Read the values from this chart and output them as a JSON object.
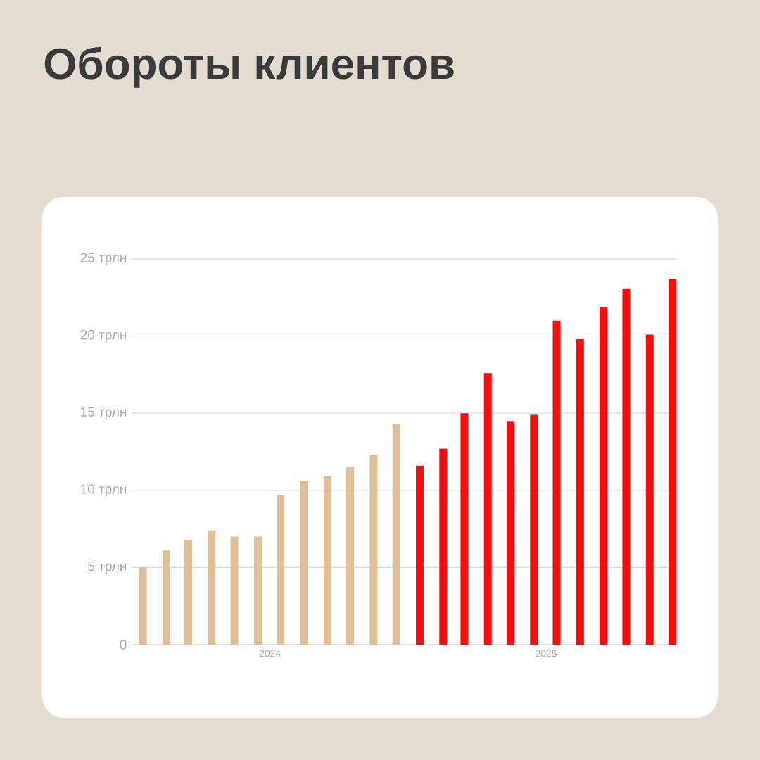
{
  "chart_data": {
    "type": "bar",
    "title": "Обороты клиентов",
    "x": [
      "2024-01-15",
      "2024-02-15",
      "2024-03-15",
      "2024-04-15",
      "2024-05-15",
      "2024-06-15",
      "2024-07-15",
      "2024-08-15",
      "2024-09-15",
      "2024-10-15",
      "2024-11-15",
      "2024-12-15",
      "2025-01-15",
      "2025-02-15",
      "2025-03-15",
      "2025-04-15",
      "2025-05-15",
      "2025-06-15",
      "2025-07-15",
      "2025-08-15",
      "2025-09-15",
      "2025-10-15",
      "2025-11-15",
      "2025-12-15"
    ],
    "values": [
      5.0,
      6.1,
      6.8,
      7.4,
      7.0,
      7.0,
      9.7,
      10.6,
      10.9,
      11.5,
      12.3,
      14.3,
      11.6,
      12.7,
      15.0,
      17.6,
      14.5,
      14.9,
      21.0,
      19.8,
      21.9,
      23.1,
      20.1,
      23.7
    ],
    "colors": [
      "#e0bf96",
      "#e0bf96",
      "#e0bf96",
      "#e0bf96",
      "#e0bf96",
      "#e0bf96",
      "#e0bf96",
      "#e0bf96",
      "#e0bf96",
      "#e0bf96",
      "#e0bf96",
      "#e0bf96",
      "#ff0a0a",
      "#ff0a0a",
      "#ff0a0a",
      "#ff0a0a",
      "#ff0a0a",
      "#ff0a0a",
      "#ff0a0a",
      "#ff0a0a",
      "#ff0a0a",
      "#ff0a0a",
      "#ff0a0a",
      "#ff0a0a"
    ],
    "xlim": [
      "2023-12-30",
      "2025-12-20"
    ],
    "xticks": [
      {
        "value": "2024-07-01",
        "label": "2024"
      },
      {
        "value": "2025-07-01",
        "label": "2025"
      }
    ],
    "ylim": [
      0,
      25
    ],
    "yticks": [
      0,
      {
        "value": 5,
        "label": "5 трлн"
      },
      {
        "value": 10,
        "label": "10 трлн"
      },
      {
        "value": 15,
        "label": "15 трлн"
      },
      {
        "value": 20,
        "label": "20 трлн"
      },
      {
        "value": 25,
        "label": "25 трлн"
      }
    ],
    "grid": "y"
  }
}
